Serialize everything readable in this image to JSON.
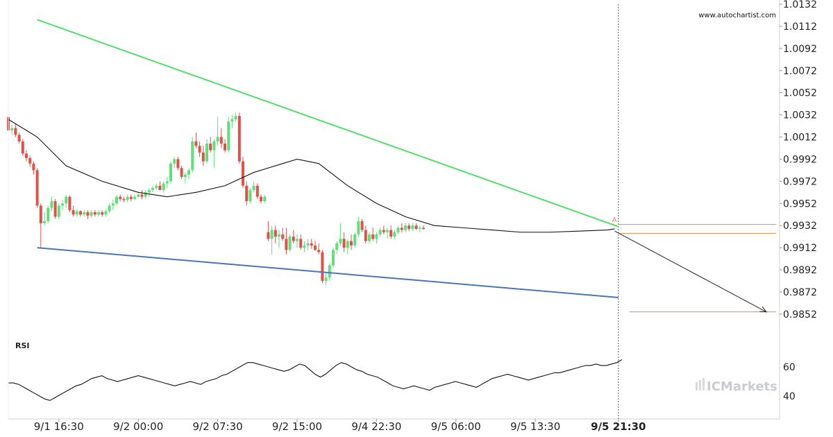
{
  "watermark": "www.autochartist.com",
  "brand": "ICMarkets",
  "rsi_label": "RSI",
  "colors": {
    "up": "#5ee07a",
    "down": "#e0514a",
    "resistance": "#4fe06a",
    "support": "#4a74b4",
    "ma": "#111111",
    "level": "#e08a5a",
    "grid": "#e8e8e8"
  },
  "chart_data": [
    {
      "type": "candlestick",
      "title": "",
      "ylim": [
        0.984,
        1.0132
      ],
      "y_ticks": [
        "1.0132",
        "1.0112",
        "1.0092",
        "1.0072",
        "1.0052",
        "1.0032",
        "1.0012",
        "0.9992",
        "0.9972",
        "0.9952",
        "0.9932",
        "0.9912",
        "0.9892",
        "0.9872",
        "0.9852"
      ],
      "x_ticks": [
        {
          "label": "9/1 16:30",
          "index": 14
        },
        {
          "label": "9/2 00:00",
          "index": 36
        },
        {
          "label": "9/2 07:30",
          "index": 58
        },
        {
          "label": "9/2 15:00",
          "index": 80
        },
        {
          "label": "9/4 22:30",
          "index": 102
        },
        {
          "label": "9/5 06:00",
          "index": 124
        },
        {
          "label": "9/5 13:30",
          "index": 146
        },
        {
          "label": "9/5 21:30",
          "index": 169,
          "bold": true
        }
      ],
      "current_index": 169,
      "candles": [
        [
          1.003,
          1.0031,
          1.0016,
          1.0018
        ],
        [
          1.0018,
          1.0023,
          1.0014,
          1.002
        ],
        [
          1.002,
          1.0024,
          1.0012,
          1.0014
        ],
        [
          1.0014,
          1.0016,
          1.0006,
          1.0008
        ],
        [
          1.0008,
          1.001,
          0.9995,
          0.9997
        ],
        [
          0.9997,
          1.0,
          0.999,
          0.9993
        ],
        [
          0.9993,
          0.9995,
          0.9985,
          0.9988
        ],
        [
          0.9988,
          0.999,
          0.9978,
          0.9982
        ],
        [
          0.9982,
          0.9984,
          0.9948,
          0.995
        ],
        [
          0.995,
          0.9952,
          0.9912,
          0.9934
        ],
        [
          0.9934,
          0.9944,
          0.9932,
          0.9936
        ],
        [
          0.9936,
          0.995,
          0.9934,
          0.9948
        ],
        [
          0.9948,
          0.9958,
          0.9945,
          0.9954
        ],
        [
          0.9954,
          0.9956,
          0.9938,
          0.994
        ],
        [
          0.994,
          0.9952,
          0.9938,
          0.995
        ],
        [
          0.995,
          0.9955,
          0.9946,
          0.9952
        ],
        [
          0.9952,
          0.996,
          0.9948,
          0.9958
        ],
        [
          0.9958,
          0.9959,
          0.9944,
          0.9946
        ],
        [
          0.9946,
          0.995,
          0.994,
          0.9942
        ],
        [
          0.9942,
          0.9947,
          0.994,
          0.9945
        ],
        [
          0.9945,
          0.9946,
          0.994,
          0.9942
        ],
        [
          0.9942,
          0.9946,
          0.994,
          0.9944
        ],
        [
          0.9944,
          0.9946,
          0.9938,
          0.9941
        ],
        [
          0.9941,
          0.9946,
          0.9939,
          0.9944
        ],
        [
          0.9944,
          0.9946,
          0.994,
          0.9942
        ],
        [
          0.9942,
          0.9946,
          0.994,
          0.9944
        ],
        [
          0.9944,
          0.9946,
          0.994,
          0.9942
        ],
        [
          0.9942,
          0.9947,
          0.994,
          0.9945
        ],
        [
          0.9945,
          0.9952,
          0.9943,
          0.995
        ],
        [
          0.995,
          0.9955,
          0.9946,
          0.9952
        ],
        [
          0.9952,
          0.996,
          0.995,
          0.9958
        ],
        [
          0.9958,
          0.996,
          0.9954,
          0.9956
        ],
        [
          0.9956,
          0.9958,
          0.9953,
          0.9955
        ],
        [
          0.9955,
          0.996,
          0.9953,
          0.9958
        ],
        [
          0.9958,
          0.996,
          0.9954,
          0.9956
        ],
        [
          0.9956,
          0.996,
          0.9955,
          0.9958
        ],
        [
          0.9958,
          0.9962,
          0.9957,
          0.996
        ],
        [
          0.996,
          0.9964,
          0.9956,
          0.9958
        ],
        [
          0.9958,
          0.9964,
          0.9956,
          0.9962
        ],
        [
          0.9962,
          0.9966,
          0.9958,
          0.9964
        ],
        [
          0.9964,
          0.9968,
          0.9962,
          0.9966
        ],
        [
          0.9966,
          0.997,
          0.9964,
          0.9968
        ],
        [
          0.9968,
          0.9972,
          0.9966,
          0.9964
        ],
        [
          0.9964,
          0.9972,
          0.9962,
          0.997
        ],
        [
          0.997,
          0.9976,
          0.9966,
          0.9972
        ],
        [
          0.9972,
          0.999,
          0.997,
          0.9988
        ],
        [
          0.9988,
          0.9994,
          0.9984,
          0.9992
        ],
        [
          0.9992,
          0.9994,
          0.9982,
          0.9984
        ],
        [
          0.9984,
          0.9986,
          0.9974,
          0.9976
        ],
        [
          0.9976,
          0.998,
          0.997,
          0.9978
        ],
        [
          0.9978,
          0.9984,
          0.9974,
          0.9982
        ],
        [
          0.9982,
          1.0012,
          0.998,
          1.0008
        ],
        [
          1.0008,
          1.0016,
          1.0002,
          1.0004
        ],
        [
          1.0004,
          1.0008,
          0.9994,
          0.9998
        ],
        [
          0.9998,
          1.0004,
          0.9986,
          0.999
        ],
        [
          0.999,
          1.001,
          0.9988,
          1.0006
        ],
        [
          1.0006,
          1.0012,
          0.9998,
          1.0
        ],
        [
          1.0,
          1.001,
          0.9984,
          1.0008
        ],
        [
          1.0008,
          1.003,
          1.0004,
          1.0012
        ],
        [
          1.0012,
          1.002,
          1.0002,
          1.0006
        ],
        [
          1.0006,
          1.001,
          0.9998,
          1.0
        ],
        [
          1.0,
          1.003,
          0.9998,
          1.0026
        ],
        [
          1.0026,
          1.0032,
          1.002,
          1.0028
        ],
        [
          1.0028,
          1.0034,
          1.0026,
          1.0031
        ],
        [
          1.0031,
          1.0034,
          0.9988,
          0.999
        ],
        [
          0.999,
          0.9994,
          0.9966,
          0.9968
        ],
        [
          0.9968,
          0.9972,
          0.995,
          0.9954
        ],
        [
          0.9954,
          0.9966,
          0.9952,
          0.9964
        ],
        [
          0.9964,
          0.9972,
          0.9962,
          0.9968
        ],
        [
          0.9968,
          0.997,
          0.9956,
          0.9958
        ],
        [
          0.9958,
          0.996,
          0.9952,
          0.9954
        ],
        [
          0.9954,
          0.996,
          0.9952,
          0.9958
        ],
        [
          0.9926,
          0.9936,
          0.9918,
          0.992
        ],
        [
          0.992,
          0.9932,
          0.9906,
          0.9928
        ],
        [
          0.9928,
          0.9932,
          0.9916,
          0.9922
        ],
        [
          0.9922,
          0.9928,
          0.9912,
          0.9924
        ],
        [
          0.9924,
          0.993,
          0.9918,
          0.992
        ],
        [
          0.992,
          0.993,
          0.9906,
          0.991
        ],
        [
          0.991,
          0.9924,
          0.9908,
          0.9922
        ],
        [
          0.9922,
          0.9928,
          0.9916,
          0.9918
        ],
        [
          0.9918,
          0.9924,
          0.9912,
          0.992
        ],
        [
          0.992,
          0.9924,
          0.991,
          0.9912
        ],
        [
          0.9912,
          0.9918,
          0.9908,
          0.9914
        ],
        [
          0.9914,
          0.992,
          0.991,
          0.9916
        ],
        [
          0.9916,
          0.992,
          0.9911,
          0.9914
        ],
        [
          0.9914,
          0.9918,
          0.9909,
          0.991
        ],
        [
          0.991,
          0.9916,
          0.9906,
          0.9908
        ],
        [
          0.9908,
          0.991,
          0.988,
          0.9882
        ],
        [
          0.9882,
          0.989,
          0.9878,
          0.9885
        ],
        [
          0.9885,
          0.9898,
          0.9882,
          0.9896
        ],
        [
          0.9896,
          0.9912,
          0.9894,
          0.991
        ],
        [
          0.991,
          0.9918,
          0.9906,
          0.9916
        ],
        [
          0.9916,
          0.9934,
          0.9914,
          0.992
        ],
        [
          0.992,
          0.9926,
          0.9908,
          0.9912
        ],
        [
          0.9912,
          0.992,
          0.9906,
          0.9918
        ],
        [
          0.9918,
          0.9924,
          0.991,
          0.9914
        ],
        [
          0.9914,
          0.9926,
          0.9912,
          0.9924
        ],
        [
          0.9924,
          0.994,
          0.9922,
          0.9936
        ],
        [
          0.9936,
          0.9938,
          0.9926,
          0.9928
        ],
        [
          0.9928,
          0.9932,
          0.9916,
          0.9918
        ],
        [
          0.9918,
          0.9926,
          0.9916,
          0.9924
        ],
        [
          0.9924,
          0.993,
          0.9918,
          0.992
        ],
        [
          0.992,
          0.9926,
          0.9916,
          0.9924
        ],
        [
          0.9924,
          0.993,
          0.9922,
          0.9928
        ],
        [
          0.9928,
          0.9932,
          0.9924,
          0.9926
        ],
        [
          0.9926,
          0.993,
          0.992,
          0.9928
        ],
        [
          0.9928,
          0.9932,
          0.992,
          0.9922
        ],
        [
          0.9922,
          0.9928,
          0.992,
          0.9926
        ],
        [
          0.9926,
          0.9932,
          0.9924,
          0.993
        ],
        [
          0.993,
          0.9934,
          0.9926,
          0.9928
        ],
        [
          0.9928,
          0.9934,
          0.9926,
          0.9932
        ],
        [
          0.9932,
          0.9934,
          0.9927,
          0.9929
        ],
        [
          0.9929,
          0.9934,
          0.9927,
          0.9932
        ],
        [
          0.9932,
          0.9934,
          0.9928,
          0.9929
        ],
        [
          0.9929,
          0.9932,
          0.9926,
          0.993
        ],
        [
          0.993,
          0.9932,
          0.9928,
          0.9929
        ]
      ],
      "moving_average": [
        [
          0,
          1.0028
        ],
        [
          8,
          1.0012
        ],
        [
          16,
          0.9986
        ],
        [
          26,
          0.9972
        ],
        [
          36,
          0.9962
        ],
        [
          44,
          0.9958
        ],
        [
          52,
          0.9962
        ],
        [
          60,
          0.9968
        ],
        [
          68,
          0.998
        ],
        [
          76,
          0.9988
        ],
        [
          80,
          0.9992
        ],
        [
          86,
          0.9988
        ],
        [
          94,
          0.9968
        ],
        [
          102,
          0.9952
        ],
        [
          110,
          0.994
        ],
        [
          118,
          0.9932
        ],
        [
          126,
          0.993
        ],
        [
          134,
          0.9928
        ],
        [
          142,
          0.9926
        ],
        [
          150,
          0.9926
        ],
        [
          158,
          0.9927
        ],
        [
          166,
          0.9928
        ],
        [
          168,
          0.9929
        ]
      ],
      "resistance_line": [
        [
          8,
          1.0118
        ],
        [
          169,
          0.9931
        ]
      ],
      "support_line": [
        [
          8,
          0.9912
        ],
        [
          169,
          0.9867
        ]
      ],
      "forecast_arrow": [
        [
          168,
          0.9927
        ],
        [
          213,
          0.9854
        ]
      ],
      "levels": [
        {
          "y": 0.9933,
          "from": 169,
          "to": 220
        },
        {
          "y": 0.9925,
          "from": 169,
          "to": 220
        },
        {
          "y": 0.9854,
          "from": 172,
          "to": 220
        }
      ],
      "pattern_marker": {
        "label": "A",
        "index": 168,
        "y": 0.9934
      }
    },
    {
      "type": "line",
      "title": "RSI",
      "ylim": [
        30,
        70
      ],
      "y_ticks": [
        "60",
        "40"
      ],
      "values": [
        49,
        49,
        48,
        46,
        44,
        42,
        40,
        38,
        37,
        39,
        41,
        43,
        45,
        47,
        48,
        50,
        52,
        53,
        54,
        52,
        51,
        50,
        51,
        52,
        53,
        54,
        53,
        52,
        51,
        50,
        49,
        48,
        47,
        48,
        49,
        50,
        49,
        48,
        50,
        51,
        52,
        54,
        55,
        57,
        59,
        61,
        63,
        63,
        62,
        61,
        60,
        59,
        58,
        57,
        58,
        60,
        62,
        61,
        58,
        55,
        53,
        55,
        58,
        61,
        63,
        62,
        60,
        58,
        57,
        55,
        54,
        53,
        51,
        49,
        47,
        46,
        45,
        46,
        47,
        46,
        45,
        44,
        46,
        47,
        48,
        49,
        50,
        49,
        48,
        47,
        46,
        48,
        50,
        52,
        53,
        54,
        55,
        54,
        53,
        52,
        51,
        52,
        53,
        54,
        55,
        56,
        56,
        57,
        58,
        59,
        60,
        61,
        61,
        62,
        61,
        61,
        62,
        63,
        65
      ]
    }
  ]
}
